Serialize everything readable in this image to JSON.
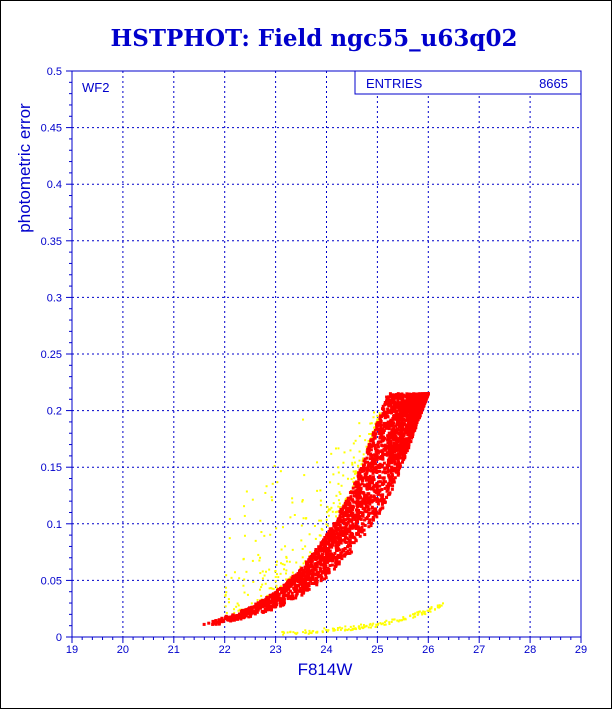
{
  "chart_data": {
    "type": "scatter",
    "title": "HSTPHOT: Field ngc55_u63q02",
    "xlabel": "F814W",
    "ylabel": "photometric error",
    "xlim": [
      19,
      29
    ],
    "ylim": [
      0,
      0.5
    ],
    "x_ticks": [
      "19",
      "20",
      "21",
      "22",
      "23",
      "24",
      "25",
      "26",
      "27",
      "28",
      "29"
    ],
    "y_ticks": [
      "0",
      "0.05",
      "0.1",
      "0.15",
      "0.2",
      "0.25",
      "0.3",
      "0.35",
      "0.4",
      "0.45",
      "0.5"
    ],
    "grid": true,
    "panel_label": "WF2",
    "stats_box": {
      "label": "ENTRIES",
      "value": "8665"
    },
    "colors": {
      "axis": "#0000cc",
      "main": "#ff0000",
      "secondary": "#ffff00"
    },
    "series": [
      {
        "color": "#ff0000",
        "envelope_lower": [
          [
            21.5,
            0.008
          ],
          [
            22.0,
            0.012
          ],
          [
            22.5,
            0.018
          ],
          [
            23.0,
            0.025
          ],
          [
            23.5,
            0.036
          ],
          [
            24.0,
            0.052
          ],
          [
            24.5,
            0.075
          ],
          [
            25.0,
            0.105
          ],
          [
            25.3,
            0.13
          ],
          [
            25.6,
            0.165
          ],
          [
            25.8,
            0.19
          ],
          [
            26.0,
            0.215
          ]
        ],
        "envelope_upper": [
          [
            21.5,
            0.012
          ],
          [
            22.0,
            0.018
          ],
          [
            22.5,
            0.026
          ],
          [
            23.0,
            0.04
          ],
          [
            23.5,
            0.06
          ],
          [
            24.0,
            0.09
          ],
          [
            24.5,
            0.13
          ],
          [
            24.8,
            0.165
          ],
          [
            25.0,
            0.19
          ],
          [
            25.2,
            0.215
          ],
          [
            26.0,
            0.215
          ]
        ]
      },
      {
        "color": "#ffff00",
        "sequence": [
          [
            23.0,
            0.003
          ],
          [
            23.5,
            0.004
          ],
          [
            24.0,
            0.006
          ],
          [
            24.5,
            0.008
          ],
          [
            25.0,
            0.011
          ],
          [
            25.5,
            0.016
          ],
          [
            26.0,
            0.023
          ],
          [
            26.3,
            0.03
          ]
        ],
        "outliers_region": {
          "x": [
            22.0,
            25.2
          ],
          "y": [
            0.02,
            0.2
          ]
        }
      }
    ]
  }
}
